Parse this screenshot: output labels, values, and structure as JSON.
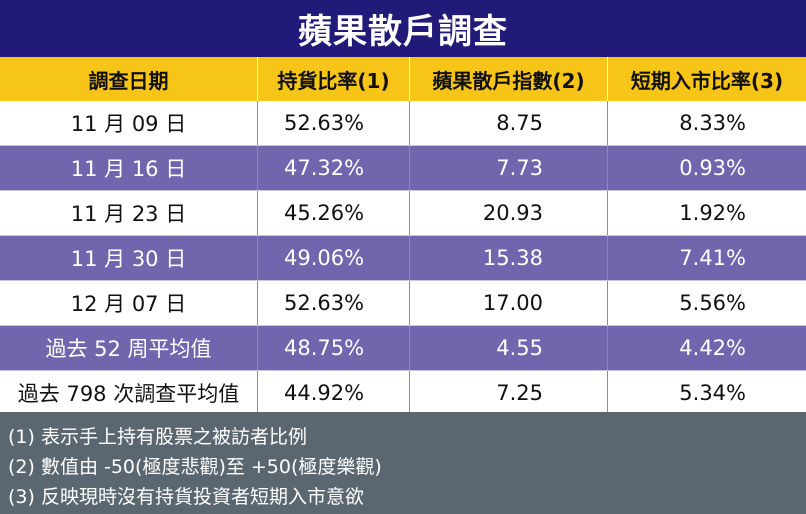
{
  "title": "蘋果散戶調查",
  "headers": [
    "調查日期",
    "持貨比率(1)",
    "蘋果散戶指數(2)",
    "短期入市比率(3)"
  ],
  "rows": [
    {
      "date": "11 月 09 日",
      "holding": "52.63%",
      "index": "8.75",
      "entry": "8.33%"
    },
    {
      "date": "11 月 16 日",
      "holding": "47.32%",
      "index": "7.73",
      "entry": "0.93%"
    },
    {
      "date": "11 月 23 日",
      "holding": "45.26%",
      "index": "20.93",
      "entry": "1.92%"
    },
    {
      "date": "11 月 30 日",
      "holding": "49.06%",
      "index": "15.38",
      "entry": "7.41%"
    },
    {
      "date": "12 月 07 日",
      "holding": "52.63%",
      "index": "17.00",
      "entry": "5.56%"
    },
    {
      "date": "過去 52 周平均值",
      "holding": "48.75%",
      "index": "4.55",
      "entry": "4.42%"
    },
    {
      "date": "過去 798 次調查平均值",
      "holding": "44.92%",
      "index": "7.25",
      "entry": "5.34%"
    }
  ],
  "notes": [
    "(1) 表示手上持有股票之被訪者比例",
    "(2) 數值由 -50(極度悲觀)至 +50(極度樂觀)",
    "(3) 反映現時沒有持貨投資者短期入市意欲"
  ],
  "colors": {
    "title_bg": "#221a78",
    "header_bg": "#f7c418",
    "row_dark": "#7166ad",
    "row_light": "#ffffff",
    "notes_bg": "#5b6770"
  }
}
